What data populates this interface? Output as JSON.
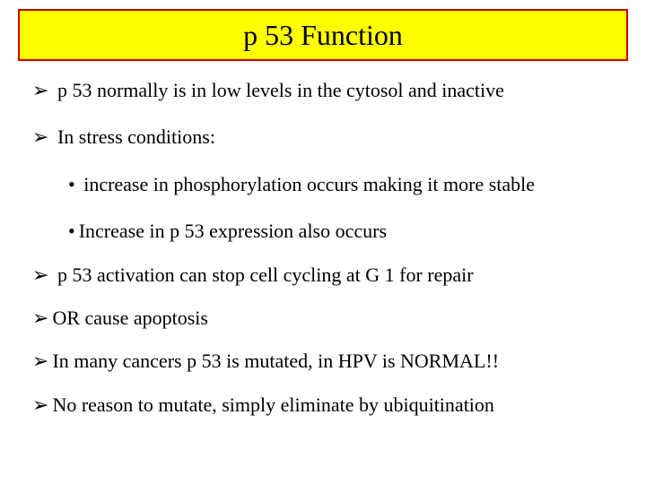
{
  "title": {
    "text": "p 53 Function",
    "bg_color": "#ffff00",
    "border_color": "#cc0000",
    "border_width": 2,
    "fontsize": 32,
    "text_color": "#000000"
  },
  "bullets": {
    "arrow_glyph": "➢",
    "dot_glyph": "•",
    "arrow_color": "#000000",
    "text_color": "#000000",
    "fontsize": 22
  },
  "items": [
    {
      "type": "arrow",
      "text": "p 53 normally is in low levels in the cytosol and inactive",
      "space_after_arrow": true
    },
    {
      "type": "arrow",
      "text": "In stress conditions:",
      "space_after_arrow": true
    },
    {
      "type": "dot",
      "indent": true,
      "text": "increase in phosphorylation occurs making it more stable",
      "space_after_dot": true
    },
    {
      "type": "dot",
      "indent": true,
      "text": "Increase in p 53 expression also occurs",
      "space_after_dot": false
    },
    {
      "type": "arrow",
      "text": "p 53 activation can stop cell cycling at G 1 for repair",
      "space_after_arrow": true
    },
    {
      "type": "arrow",
      "text": "OR cause apoptosis",
      "space_after_arrow": false
    },
    {
      "type": "arrow",
      "text": "In many cancers p 53 is mutated, in HPV is NORMAL!!",
      "space_after_arrow": false
    },
    {
      "type": "arrow",
      "text": "No reason to mutate, simply eliminate by ubiquitination",
      "space_after_arrow": false
    }
  ],
  "background_color": "#ffffff"
}
